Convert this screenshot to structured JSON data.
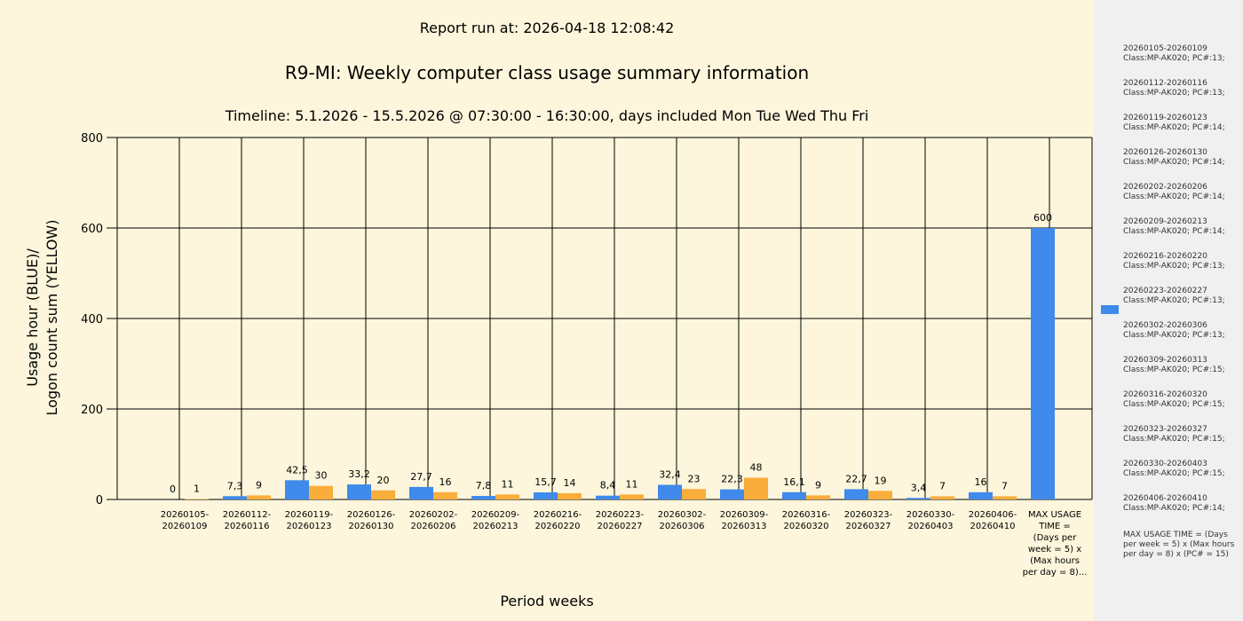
{
  "report_run": "Report run at: 2026-04-18 12:08:42",
  "chart_data": {
    "type": "bar",
    "title": "R9-MI: Weekly computer class usage summary information",
    "subtitle": "Timeline:  5.1.2026  - 15.5.2026  @  07:30:00 -  16:30:00, days included Mon Tue Wed Thu Fri",
    "xlabel": "Period weeks",
    "ylabel_lines": [
      "Usage hour (BLUE)/",
      "Logon count sum (YELLOW)"
    ],
    "ylim": [
      0,
      800
    ],
    "yticks": [
      0,
      200,
      400,
      600,
      800
    ],
    "grid": true,
    "colors": {
      "usage": "#3f8aea",
      "logon": "#f9ad3a"
    },
    "categories": [
      [
        "20260105-",
        "20260109"
      ],
      [
        "20260112-",
        "20260116"
      ],
      [
        "20260119-",
        "20260123"
      ],
      [
        "20260126-",
        "20260130"
      ],
      [
        "20260202-",
        "20260206"
      ],
      [
        "20260209-",
        "20260213"
      ],
      [
        "20260216-",
        "20260220"
      ],
      [
        "20260223-",
        "20260227"
      ],
      [
        "20260302-",
        "20260306"
      ],
      [
        "20260309-",
        "20260313"
      ],
      [
        "20260316-",
        "20260320"
      ],
      [
        "20260323-",
        "20260327"
      ],
      [
        "20260330-",
        "20260403"
      ],
      [
        "20260406-",
        "20260410"
      ],
      [
        "MAX USAGE",
        "TIME =",
        "(Days per",
        "week = 5) x",
        "(Max hours",
        "per day = 8)..."
      ]
    ],
    "series": [
      {
        "key": "usage",
        "values": [
          0,
          7.3,
          42.5,
          33.2,
          27.7,
          7.8,
          15.7,
          8.4,
          32.4,
          22.3,
          16.1,
          22.7,
          3.4,
          16,
          600
        ],
        "labels": [
          "0",
          "7,3",
          "42,5",
          "33,2",
          "27,7",
          "7,8",
          "15,7",
          "8,4",
          "32,4",
          "22,3",
          "16,1",
          "22,7",
          "3,4",
          "16",
          "600"
        ]
      },
      {
        "key": "logon",
        "values": [
          1,
          9,
          30,
          20,
          16,
          11,
          14,
          11,
          23,
          48,
          9,
          19,
          7,
          7,
          null
        ],
        "labels": [
          "1",
          "9",
          "30",
          "20",
          "16",
          "11",
          "14",
          "11",
          "23",
          "48",
          "9",
          "19",
          "7",
          "7",
          ""
        ]
      }
    ]
  },
  "legend": {
    "entries": [
      [
        "20260105-20260109",
        "Class:MP-AK020; PC#:13;"
      ],
      [
        "20260112-20260116",
        "Class:MP-AK020; PC#:13;"
      ],
      [
        "20260119-20260123",
        "Class:MP-AK020; PC#:14;"
      ],
      [
        "20260126-20260130",
        "Class:MP-AK020; PC#:14;"
      ],
      [
        "20260202-20260206",
        "Class:MP-AK020; PC#:14;"
      ],
      [
        "20260209-20260213",
        "Class:MP-AK020; PC#:14;"
      ],
      [
        "20260216-20260220",
        "Class:MP-AK020; PC#:13;"
      ],
      [
        "20260223-20260227",
        "Class:MP-AK020; PC#:13;"
      ],
      [
        "20260302-20260306",
        "Class:MP-AK020; PC#:13;"
      ],
      [
        "20260309-20260313",
        "Class:MP-AK020; PC#:15;"
      ],
      [
        "20260316-20260320",
        "Class:MP-AK020; PC#:15;"
      ],
      [
        "20260323-20260327",
        "Class:MP-AK020; PC#:15;"
      ],
      [
        "20260330-20260403",
        "Class:MP-AK020; PC#:15;"
      ],
      [
        "20260406-20260410",
        "Class:MP-AK020; PC#:14;"
      ]
    ],
    "max_note": "MAX USAGE TIME =  (Days per week = 5) x (Max hours per day = 8) x (PC# = 15)"
  }
}
